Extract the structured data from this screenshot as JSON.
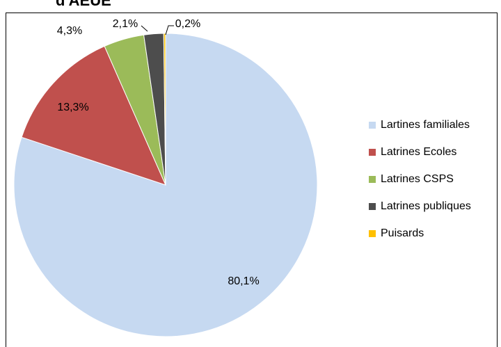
{
  "chart_data": {
    "type": "pie",
    "title": "d'AEUE",
    "categories": [
      "Lartines familiales",
      "Latrines Ecoles",
      "Latrines CSPS",
      "Latrines publiques",
      "Puisards"
    ],
    "values": [
      80.1,
      13.3,
      4.3,
      2.1,
      0.2
    ],
    "value_labels": [
      "80,1%",
      "13,3%",
      "4,3%",
      "2,1%",
      "0,2%"
    ],
    "colors": [
      "#c6d9f1",
      "#c0504d",
      "#9bbb59",
      "#4d4d4d",
      "#ffc000"
    ],
    "legend": "right"
  }
}
